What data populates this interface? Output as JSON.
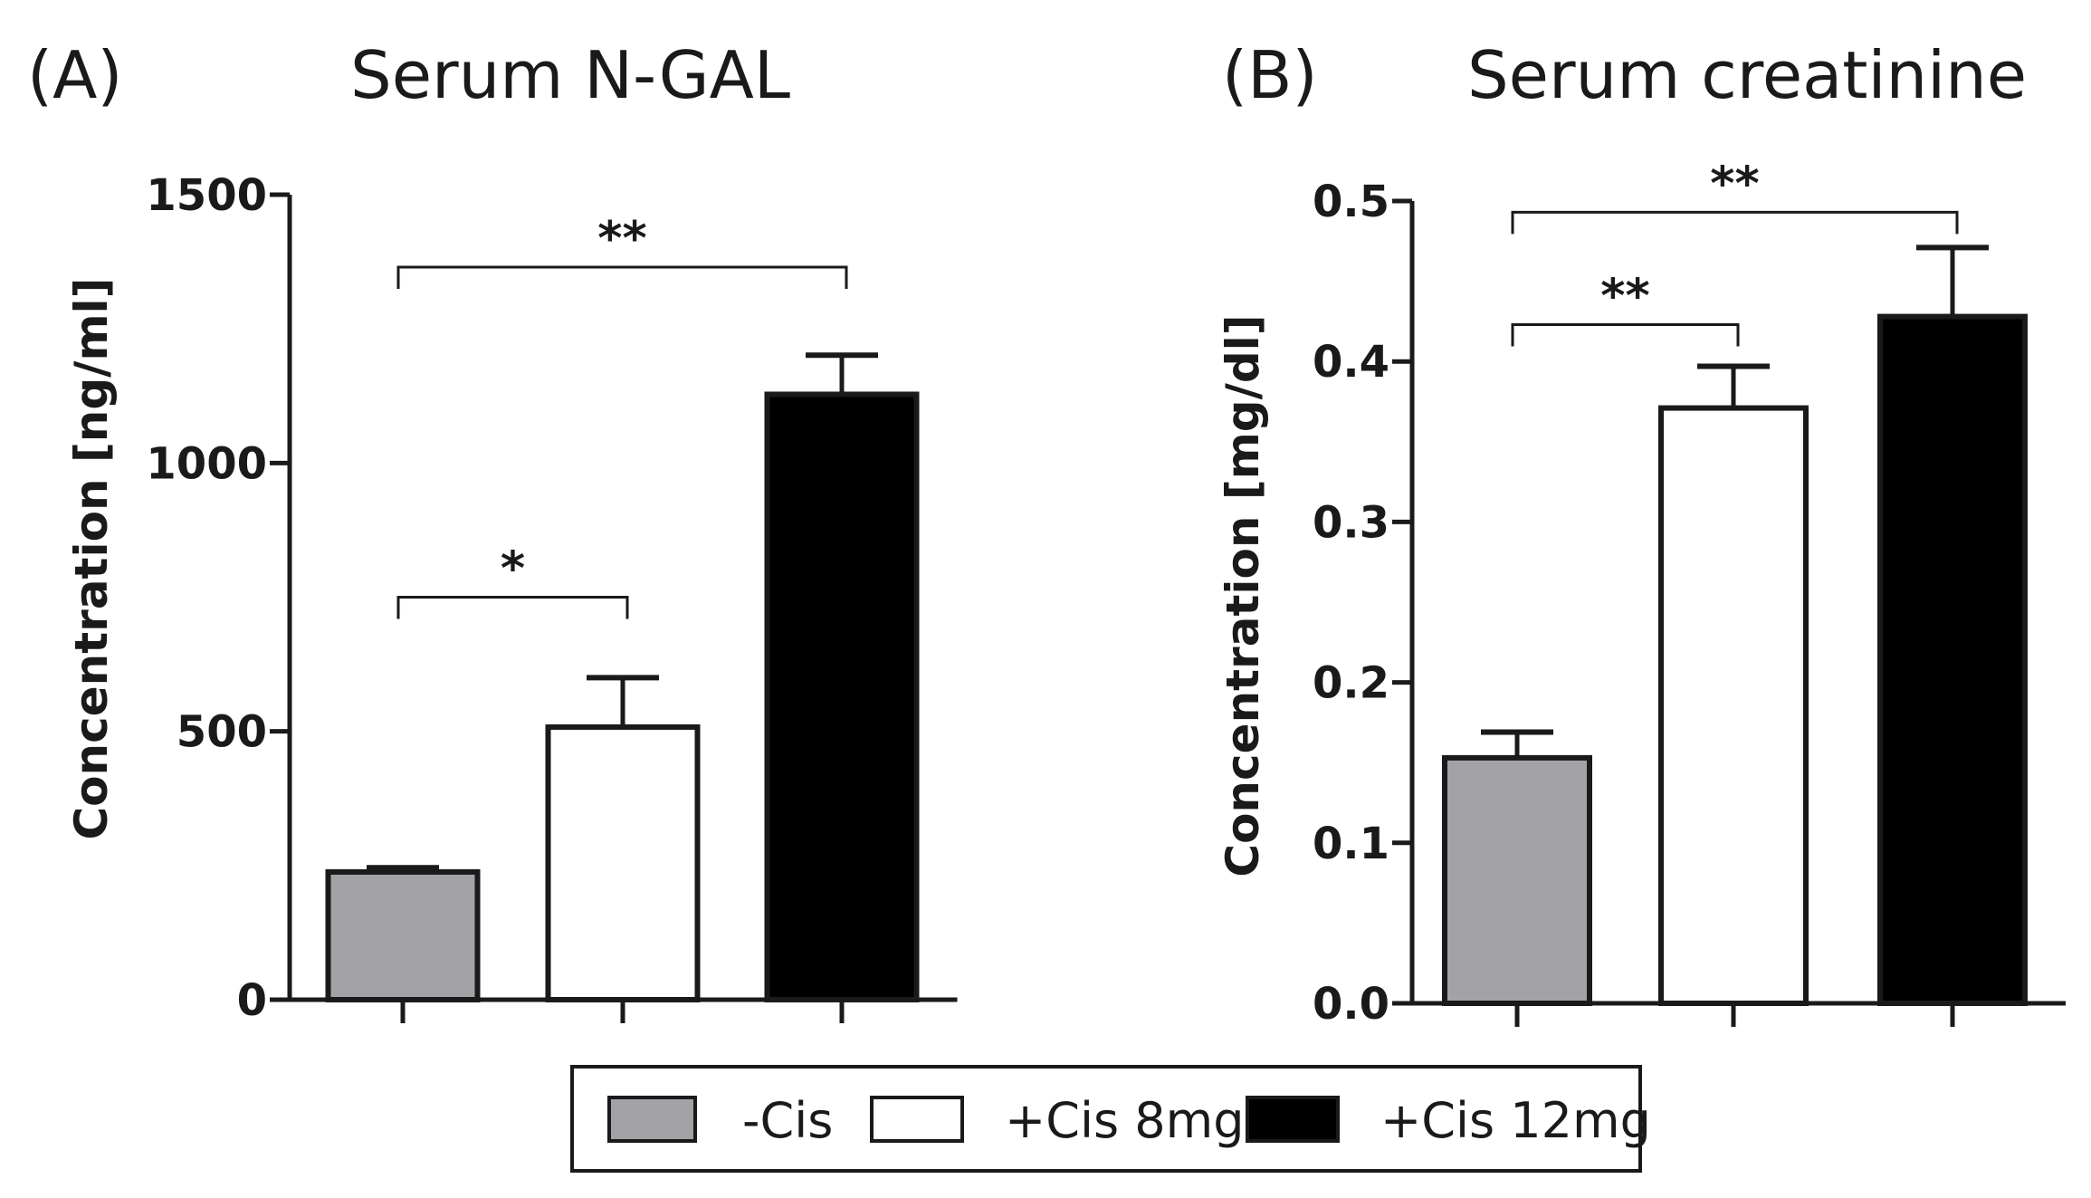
{
  "colors": {
    "neg_cis": "#a3a2a7",
    "cis_8mg": "#ffffff",
    "cis_12mg": "#000000",
    "ink": "#1a1a1a"
  },
  "legend": {
    "items": [
      "-Cis",
      "+Cis 8mg",
      "+Cis 12mg"
    ]
  },
  "chart_data": [
    {
      "type": "bar",
      "panel_label": "(A)",
      "title": "Serum N-GAL",
      "ylabel": "Concentration [ng/ml]",
      "xlabel": "",
      "categories": [
        "-Cis",
        "+Cis 8mg",
        "+Cis 12mg"
      ],
      "values": [
        238,
        508,
        1128
      ],
      "errors": [
        8,
        92,
        73
      ],
      "ylim": [
        0,
        1500
      ],
      "yticks": [
        0,
        500,
        1000,
        1500
      ],
      "ytick_labels": [
        "0",
        "500",
        "1000",
        "1500"
      ],
      "significance": [
        {
          "from": 0,
          "to": 1,
          "y": 750,
          "label": "*"
        },
        {
          "from": 0,
          "to": 2,
          "y": 1365,
          "label": "**"
        }
      ]
    },
    {
      "type": "bar",
      "panel_label": "(B)",
      "title": "Serum creatinine",
      "ylabel": "Concentration [mg/dl]",
      "xlabel": "",
      "categories": [
        "-Cis",
        "+Cis 8mg",
        "+Cis 12mg"
      ],
      "values": [
        0.153,
        0.371,
        0.428
      ],
      "errors": [
        0.016,
        0.026,
        0.043
      ],
      "ylim": [
        0,
        0.5
      ],
      "yticks": [
        0,
        0.1,
        0.2,
        0.3,
        0.4,
        0.5
      ],
      "ytick_labels": [
        "0.0",
        "0.1",
        "0.2",
        "0.3",
        "0.4",
        "0.5"
      ],
      "significance": [
        {
          "from": 0,
          "to": 1,
          "y": 0.423,
          "label": "**"
        },
        {
          "from": 0,
          "to": 2,
          "y": 0.493,
          "label": "**"
        }
      ]
    }
  ]
}
